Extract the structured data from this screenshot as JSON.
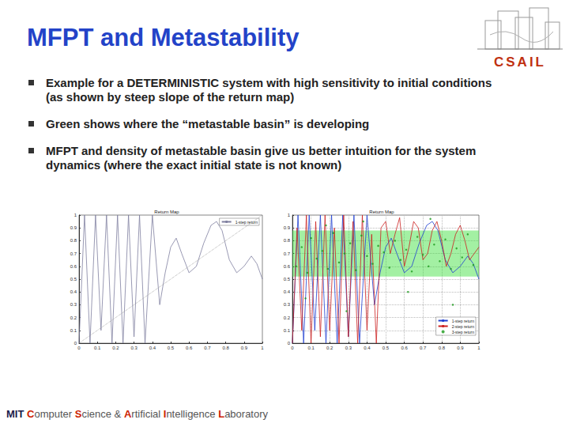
{
  "title": "MFPT and Metastability",
  "bullets": [
    "Example for a DETERMINISTIC system with high sensitivity to initial conditions (as shown by steep slope of the return map)",
    "Green shows where the “metastable basin” is developing",
    "MFPT and density of metastable basin give us better intuition for the system dynamics (where the exact initial state is not known)"
  ],
  "logo_text": "CSAIL",
  "footer": "MIT Computer Science & Artificial Intelligence Laboratory",
  "chart_data": [
    {
      "type": "line",
      "title": "Return Map",
      "xlim": [
        0,
        1
      ],
      "ylim": [
        0,
        1
      ],
      "xticks": [
        0,
        0.1,
        0.2,
        0.3,
        0.4,
        0.5,
        0.6,
        0.7,
        0.8,
        0.9,
        1
      ],
      "yticks": [
        0,
        0.1,
        0.2,
        0.3,
        0.4,
        0.5,
        0.6,
        0.7,
        0.8,
        0.9,
        1
      ],
      "grid": false,
      "legend": "upper right",
      "series": [
        {
          "name": "1-step return",
          "color": "#7f7f9f",
          "line_style": "solid",
          "x": [
            0,
            0.03,
            0.06,
            0.09,
            0.12,
            0.15,
            0.18,
            0.21,
            0.24,
            0.27,
            0.3,
            0.33,
            0.36,
            0.4,
            0.44,
            0.47,
            0.5,
            0.53,
            0.56,
            0.6,
            0.64,
            0.68,
            0.72,
            0.75,
            0.78,
            0.82,
            0.86,
            0.9,
            0.94,
            0.97,
            1
          ],
          "values": [
            0,
            1,
            0,
            1,
            0.1,
            1,
            0,
            1,
            0,
            1,
            0.05,
            1,
            0,
            1,
            0.3,
            0.55,
            0.75,
            0.82,
            0.7,
            0.55,
            0.6,
            0.78,
            0.92,
            0.95,
            0.88,
            0.65,
            0.55,
            0.6,
            0.68,
            0.62,
            0.5
          ]
        },
        {
          "color": "#9a9a9a",
          "line_style": "dotted",
          "x": [
            0,
            1
          ],
          "values": [
            0,
            1
          ]
        }
      ]
    },
    {
      "type": "line",
      "title": "Return Map",
      "xlim": [
        0,
        1
      ],
      "ylim": [
        0,
        1
      ],
      "xticks": [
        0,
        0.1,
        0.2,
        0.3,
        0.4,
        0.5,
        0.6,
        0.7,
        0.8,
        0.9,
        1
      ],
      "yticks": [
        0,
        0.1,
        0.2,
        0.3,
        0.4,
        0.5,
        0.6,
        0.7,
        0.8,
        0.9,
        1
      ],
      "grid": true,
      "legend": "lower right",
      "band": [
        0.52,
        0.88
      ],
      "band_color": "#33dd33",
      "series": [
        {
          "name": "1-step return",
          "color": "#1f3fd0",
          "line_style": "solid",
          "x": [
            0,
            0.03,
            0.06,
            0.09,
            0.12,
            0.15,
            0.18,
            0.21,
            0.24,
            0.27,
            0.3,
            0.33,
            0.36,
            0.4,
            0.44,
            0.47,
            0.5,
            0.53,
            0.56,
            0.6,
            0.64,
            0.68,
            0.72,
            0.75,
            0.78,
            0.82,
            0.86,
            0.9,
            0.94,
            0.97,
            1
          ],
          "values": [
            0,
            1,
            0,
            1,
            0.1,
            1,
            0,
            1,
            0,
            1,
            0.05,
            1,
            0,
            1,
            0.3,
            0.55,
            0.75,
            0.82,
            0.7,
            0.55,
            0.6,
            0.78,
            0.92,
            0.95,
            0.88,
            0.65,
            0.55,
            0.6,
            0.68,
            0.62,
            0.5
          ]
        },
        {
          "name": "2-step return",
          "color": "#cc2020",
          "line_style": "solid",
          "x": [
            0,
            0.025,
            0.05,
            0.075,
            0.1,
            0.125,
            0.15,
            0.175,
            0.2,
            0.225,
            0.25,
            0.275,
            0.3,
            0.325,
            0.35,
            0.375,
            0.4,
            0.425,
            0.45,
            0.475,
            0.5,
            0.525,
            0.55,
            0.575,
            0.6,
            0.625,
            0.65,
            0.675,
            0.7,
            0.725,
            0.75,
            0.775,
            0.8,
            0.825,
            0.85,
            0.875,
            0.9,
            0.925,
            0.95,
            0.975,
            1
          ],
          "values": [
            0,
            0.9,
            0.1,
            1,
            0,
            0.95,
            0.05,
            1,
            0.1,
            0.9,
            0,
            1,
            0.05,
            0.95,
            0,
            1,
            0.1,
            0.85,
            0,
            0.9,
            0.95,
            0.7,
            0.85,
            0.98,
            0.6,
            0.75,
            0.95,
            0.9,
            0.65,
            0.7,
            0.88,
            0.95,
            0.8,
            0.6,
            0.7,
            0.85,
            0.92,
            0.8,
            0.65,
            0.7,
            0.75
          ]
        },
        {
          "name": "3-step return",
          "type": "scatter",
          "marker": "circle",
          "color": "#1a9a1a",
          "x": [
            0.02,
            0.05,
            0.08,
            0.1,
            0.13,
            0.16,
            0.19,
            0.22,
            0.25,
            0.28,
            0.31,
            0.34,
            0.37,
            0.4,
            0.43,
            0.46,
            0.49,
            0.52,
            0.55,
            0.58,
            0.61,
            0.64,
            0.67,
            0.7,
            0.73,
            0.76,
            0.79,
            0.82,
            0.85,
            0.88,
            0.91,
            0.94,
            0.97,
            0.07,
            0.18,
            0.29,
            0.38,
            0.62,
            0.74,
            0.86
          ],
          "values": [
            0.6,
            0.75,
            0.55,
            0.82,
            0.66,
            0.72,
            0.58,
            0.86,
            0.63,
            0.7,
            0.78,
            0.57,
            0.84,
            0.68,
            0.62,
            0.76,
            0.71,
            0.59,
            0.8,
            0.65,
            0.73,
            0.56,
            0.83,
            0.69,
            0.6,
            0.77,
            0.64,
            0.81,
            0.58,
            0.74,
            0.67,
            0.85,
            0.61,
            0.35,
            0.92,
            0.25,
            0.95,
            0.4,
            0.97,
            0.3
          ]
        }
      ]
    }
  ]
}
